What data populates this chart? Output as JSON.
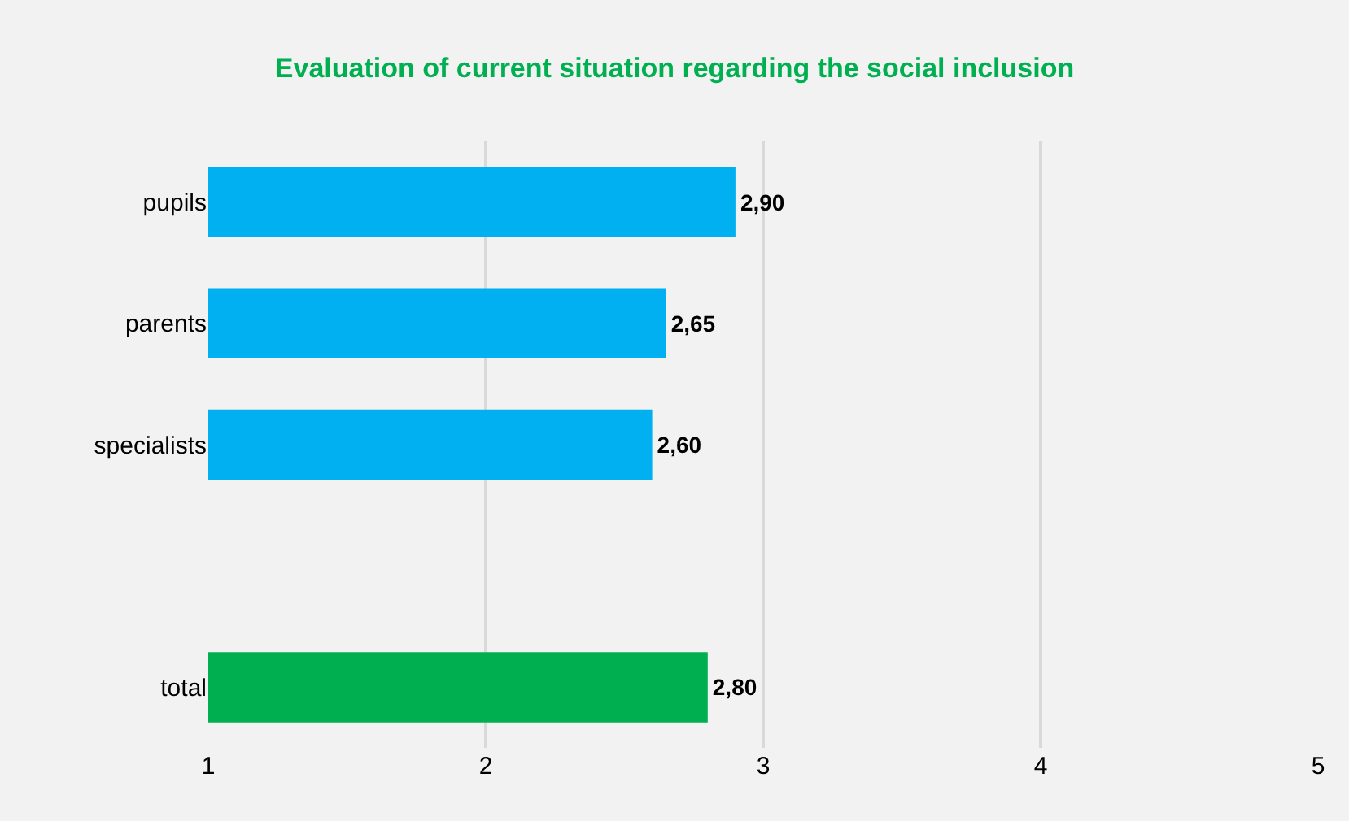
{
  "chart_data": {
    "type": "bar",
    "orientation": "horizontal",
    "title": "Evaluation of current situation regarding the social inclusion",
    "categories": [
      "pupils",
      "parents",
      "specialists",
      null,
      "total"
    ],
    "values": [
      2.9,
      2.65,
      2.6,
      null,
      2.8
    ],
    "colors": [
      "#00b0f0",
      "#00b0f0",
      "#00b0f0",
      "#00b0f0",
      "#00b050"
    ],
    "value_labels": [
      "2,90",
      "2,65",
      "2,60",
      null,
      "2,80"
    ],
    "xlim": [
      1,
      5
    ],
    "xticks": [
      1,
      2,
      3,
      4,
      5
    ],
    "grid": "x"
  }
}
